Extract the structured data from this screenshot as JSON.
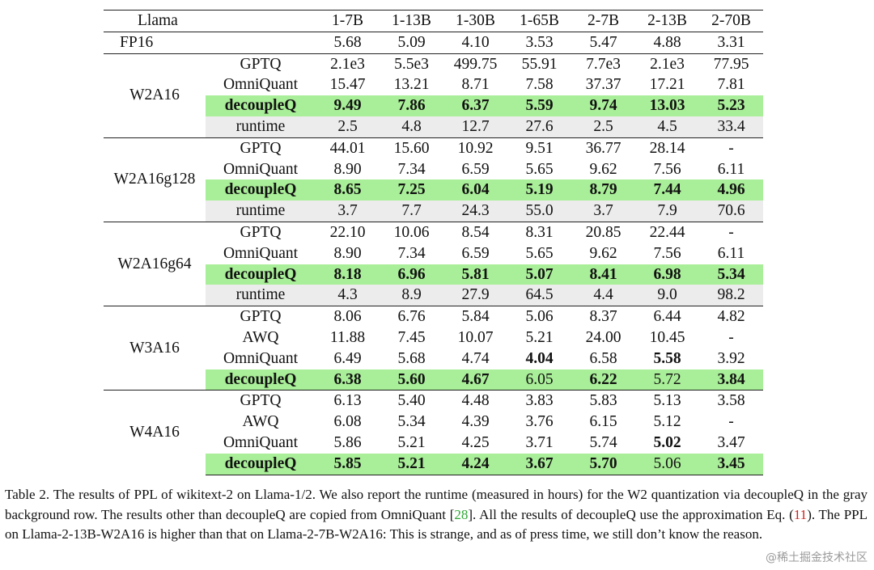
{
  "table": {
    "header": {
      "model_label": "Llama",
      "columns": [
        "1-7B",
        "1-13B",
        "1-30B",
        "1-65B",
        "2-7B",
        "2-13B",
        "2-70B"
      ]
    },
    "fp16": {
      "label": "FP16",
      "values": [
        "5.68",
        "5.09",
        "4.10",
        "3.53",
        "5.47",
        "4.88",
        "3.31"
      ]
    },
    "groups": [
      {
        "name": "W2A16",
        "rows": [
          {
            "method": "GPTQ",
            "kind": "normal",
            "values": [
              "2.1e3",
              "5.5e3",
              "499.75",
              "55.91",
              "7.7e3",
              "2.1e3",
              "77.95"
            ]
          },
          {
            "method": "OmniQuant",
            "kind": "normal",
            "values": [
              "15.47",
              "13.21",
              "8.71",
              "7.58",
              "37.37",
              "17.21",
              "7.81"
            ]
          },
          {
            "method": "decoupleQ",
            "kind": "decoupleq",
            "values": [
              "9.49",
              "7.86",
              "6.37",
              "5.59",
              "9.74",
              "13.03",
              "5.23"
            ]
          },
          {
            "method": "runtime",
            "kind": "runtime",
            "values": [
              "2.5",
              "4.8",
              "12.7",
              "27.6",
              "2.5",
              "4.5",
              "33.4"
            ]
          }
        ]
      },
      {
        "name": "W2A16g128",
        "rows": [
          {
            "method": "GPTQ",
            "kind": "normal",
            "values": [
              "44.01",
              "15.60",
              "10.92",
              "9.51",
              "36.77",
              "28.14",
              "-"
            ]
          },
          {
            "method": "OmniQuant",
            "kind": "normal",
            "values": [
              "8.90",
              "7.34",
              "6.59",
              "5.65",
              "9.62",
              "7.56",
              "6.11"
            ]
          },
          {
            "method": "decoupleQ",
            "kind": "decoupleq",
            "values": [
              "8.65",
              "7.25",
              "6.04",
              "5.19",
              "8.79",
              "7.44",
              "4.96"
            ]
          },
          {
            "method": "runtime",
            "kind": "runtime",
            "values": [
              "3.7",
              "7.7",
              "24.3",
              "55.0",
              "3.7",
              "7.9",
              "70.6"
            ]
          }
        ]
      },
      {
        "name": "W2A16g64",
        "rows": [
          {
            "method": "GPTQ",
            "kind": "normal",
            "values": [
              "22.10",
              "10.06",
              "8.54",
              "8.31",
              "20.85",
              "22.44",
              "-"
            ]
          },
          {
            "method": "OmniQuant",
            "kind": "normal",
            "values": [
              "8.90",
              "7.34",
              "6.59",
              "5.65",
              "9.62",
              "7.56",
              "6.11"
            ]
          },
          {
            "method": "decoupleQ",
            "kind": "decoupleq",
            "values": [
              "8.18",
              "6.96",
              "5.81",
              "5.07",
              "8.41",
              "6.98",
              "5.34"
            ]
          },
          {
            "method": "runtime",
            "kind": "runtime",
            "values": [
              "4.3",
              "8.9",
              "27.9",
              "64.5",
              "4.4",
              "9.0",
              "98.2"
            ]
          }
        ]
      },
      {
        "name": "W3A16",
        "rows": [
          {
            "method": "GPTQ",
            "kind": "normal",
            "values": [
              "8.06",
              "6.76",
              "5.84",
              "5.06",
              "8.37",
              "6.44",
              "4.82"
            ]
          },
          {
            "method": "AWQ",
            "kind": "normal",
            "values": [
              "11.88",
              "7.45",
              "10.07",
              "5.21",
              "24.00",
              "10.45",
              "-"
            ]
          },
          {
            "method": "OmniQuant",
            "kind": "normal",
            "values": [
              "6.49",
              "5.68",
              "4.74",
              "4.04",
              "6.58",
              "5.58",
              "3.92"
            ],
            "bold_cols": [
              3,
              5
            ]
          },
          {
            "method": "decoupleQ",
            "kind": "decoupleq",
            "values": [
              "6.38",
              "5.60",
              "4.67",
              "6.05",
              "6.22",
              "5.72",
              "3.84"
            ],
            "plain_cols": [
              3,
              5
            ]
          }
        ]
      },
      {
        "name": "W4A16",
        "rows": [
          {
            "method": "GPTQ",
            "kind": "normal",
            "values": [
              "6.13",
              "5.40",
              "4.48",
              "3.83",
              "5.83",
              "5.13",
              "3.58"
            ]
          },
          {
            "method": "AWQ",
            "kind": "normal",
            "values": [
              "6.08",
              "5.34",
              "4.39",
              "3.76",
              "6.15",
              "5.12",
              "-"
            ]
          },
          {
            "method": "OmniQuant",
            "kind": "normal",
            "values": [
              "5.86",
              "5.21",
              "4.25",
              "3.71",
              "5.74",
              "5.02",
              "3.47"
            ],
            "bold_cols": [
              5
            ]
          },
          {
            "method": "decoupleQ",
            "kind": "decoupleq",
            "values": [
              "5.85",
              "5.21",
              "4.24",
              "3.67",
              "5.70",
              "5.06",
              "3.45"
            ],
            "plain_cols": [
              5
            ]
          }
        ]
      }
    ]
  },
  "caption": {
    "part1": "Table 2. The results of PPL of wikitext-2 on Llama-1/2.  We also report the runtime (measured in hours) for the W2 quantization via decoupleQ in the gray background row. The results other than decoupleQ are copied from OmniQuant [",
    "cite1": "28",
    "part2": "]. All the results of decoupleQ use the approximation Eq. (",
    "ref1": "11",
    "part3": "). The PPL on Llama-2-13B-W2A16 is higher than that on Llama-2-7B-W2A16: This is strange, and as of press time, we still don’t know the reason."
  },
  "watermark": "@稀土掘金技术社区",
  "colors": {
    "decoupleq_highlight": "#a9ee98",
    "runtime_highlight": "#ececec",
    "citation": "#2fa836",
    "equation_ref": "#d0201c"
  }
}
